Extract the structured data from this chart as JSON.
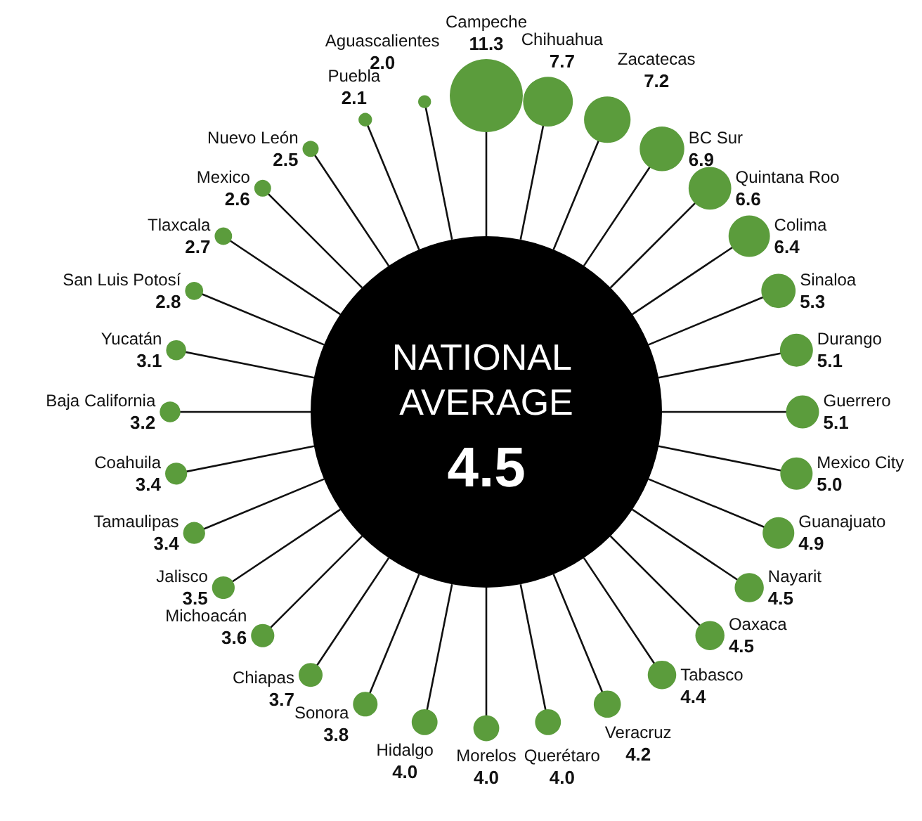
{
  "chart_data": {
    "type": "other",
    "categories": [
      "Campeche",
      "Chihuahua",
      "Zacatecas",
      "BC Sur",
      "Quintana Roo",
      "Colima",
      "Sinaloa",
      "Durango",
      "Guerrero",
      "Mexico City",
      "Guanajuato",
      "Nayarit",
      "Oaxaca",
      "Tabasco",
      "Veracruz",
      "Querétaro",
      "Morelos",
      "Hidalgo",
      "Sonora",
      "Chiapas",
      "Michoacán",
      "Jalisco",
      "Tamaulipas",
      "Coahuila",
      "Baja California",
      "Yucatán",
      "San Luis Potosí",
      "Tlaxcala",
      "Mexico",
      "Nuevo León",
      "Puebla",
      "Aguascalientes"
    ],
    "values": [
      11.3,
      7.7,
      7.2,
      6.9,
      6.6,
      6.4,
      5.3,
      5.1,
      5.1,
      5.0,
      4.9,
      4.5,
      4.5,
      4.4,
      4.2,
      4.0,
      4.0,
      4.0,
      3.8,
      3.7,
      3.6,
      3.5,
      3.4,
      3.4,
      3.2,
      3.1,
      2.8,
      2.7,
      2.6,
      2.5,
      2.1,
      2.0
    ],
    "value_labels": [
      "11.3",
      "7.7",
      "7.2",
      "6.9",
      "6.6",
      "6.4",
      "5.3",
      "5.1",
      "5.1",
      "5.0",
      "4.9",
      "4.5",
      "4.5",
      "4.4",
      "4.2",
      "4.0",
      "4.0",
      "4.0",
      "3.8",
      "3.7",
      "3.6",
      "3.5",
      "3.4",
      "3.4",
      "3.2",
      "3.1",
      "2.8",
      "2.7",
      "2.6",
      "2.5",
      "2.1",
      "2.0"
    ],
    "color": "#5b9c3c",
    "annotations": [
      "NATIONAL AVERAGE",
      "4.5"
    ]
  }
}
